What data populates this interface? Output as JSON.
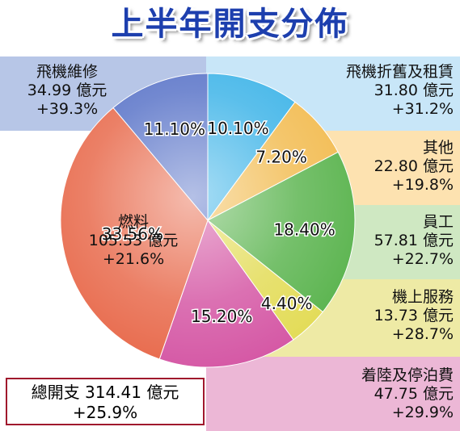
{
  "chart_data": {
    "type": "pie",
    "title": "上半年開支分佈",
    "slices": [
      {
        "name": "飛機折舊及租賃",
        "value": "31.80 億元",
        "change": "+31.2%",
        "percent": 10.1,
        "percent_label": "10.10%",
        "color": "#3eb4e8",
        "band_color": "#c8e6f8"
      },
      {
        "name": "其他",
        "value": "22.80 億元",
        "change": "+19.8%",
        "percent": 7.2,
        "percent_label": "7.20%",
        "color": "#f2bc52",
        "band_color": "#fde2b0"
      },
      {
        "name": "員工",
        "value": "57.81 億元",
        "change": "+22.7%",
        "percent": 18.4,
        "percent_label": "18.40%",
        "color": "#5db551",
        "band_color": "#cfe8c2"
      },
      {
        "name": "機上服務",
        "value": "13.73 億元",
        "change": "+28.7%",
        "percent": 4.4,
        "percent_label": "4.40%",
        "color": "#e3dc58",
        "band_color": "#eeeaa5"
      },
      {
        "name": "着陸及停泊費",
        "value": "47.75 億元",
        "change": "+29.9%",
        "percent": 15.2,
        "percent_label": "15.20%",
        "color": "#d558a5",
        "band_color": "#ecb7d6"
      },
      {
        "name": "燃料",
        "value": "105.53 億元",
        "change": "+21.6%",
        "percent": 33.56,
        "percent_label": "33.56%",
        "color": "#e86a4c",
        "band_color": null
      },
      {
        "name": "飛機維修",
        "value": "34.99 億元",
        "change": "+39.3%",
        "percent": 11.1,
        "percent_label": "11.10%",
        "color": "#5a74c8",
        "band_color": "#b7c6e7"
      }
    ],
    "total": {
      "label": "總開支",
      "value": "314.41 億元",
      "change": "+25.9%"
    }
  }
}
